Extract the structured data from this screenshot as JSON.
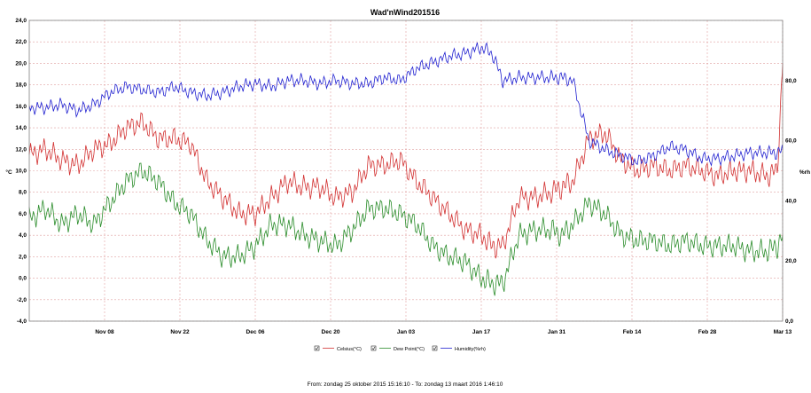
{
  "chart_data": {
    "type": "line",
    "title": "Wad'nWind201516",
    "ylabel_left": "°C",
    "ylabel_right": "%rh",
    "ylim_left": [
      -4,
      24
    ],
    "y_ticks_left": [
      "-4,0",
      "-2,0",
      "0,0",
      "2,0",
      "4,0",
      "6,0",
      "8,0",
      "10,0",
      "12,0",
      "14,0",
      "16,0",
      "18,0",
      "20,0",
      "22,0",
      "24,0"
    ],
    "ylim_right": [
      0,
      100
    ],
    "y_ticks_right": [
      "0,0",
      "20,0",
      "40,0",
      "60,0",
      "80,0"
    ],
    "x_tick_labels": [
      "Nov 08",
      "Nov 22",
      "Dec 06",
      "Dec 20",
      "Jan 03",
      "Jan 17",
      "Jan 31",
      "Feb 14",
      "Feb 28",
      "Mar 13"
    ],
    "x_range_days": [
      0,
      140
    ],
    "x_tick_days": [
      14,
      28,
      42,
      56,
      70,
      84,
      98,
      112,
      126,
      140
    ],
    "grid": true,
    "legend_position": "bottom-center",
    "series": [
      {
        "name": "Celsius(°C)",
        "axis": "left",
        "color": "#d23030",
        "x": [
          0,
          3,
          6,
          9,
          12,
          15,
          18,
          21,
          24,
          27,
          30,
          33,
          36,
          39,
          42,
          45,
          48,
          51,
          54,
          57,
          60,
          63,
          66,
          69,
          72,
          75,
          78,
          81,
          84,
          86,
          88,
          91,
          94,
          97,
          99,
          101,
          104,
          107,
          110,
          113,
          116,
          119,
          122,
          125,
          128,
          131,
          134,
          137,
          139,
          140
        ],
        "values": [
          11.5,
          12,
          11,
          10.5,
          12,
          12.5,
          14,
          14.5,
          13,
          13,
          12.5,
          9,
          7.5,
          6,
          6,
          7.5,
          9,
          8.5,
          8.5,
          7.5,
          8,
          10.5,
          10.5,
          11,
          9,
          7.5,
          6,
          4.5,
          4,
          3,
          3,
          7.5,
          7.5,
          8,
          8.5,
          9,
          13,
          13.5,
          11,
          10,
          10.5,
          10,
          10.5,
          10,
          9.5,
          10,
          10,
          9.5,
          10,
          20
        ]
      },
      {
        "name": "Dew Point(°C)",
        "axis": "left",
        "color": "#2a8c2a",
        "x": [
          0,
          3,
          6,
          9,
          12,
          15,
          18,
          21,
          24,
          27,
          30,
          33,
          36,
          39,
          42,
          45,
          48,
          51,
          54,
          57,
          60,
          63,
          66,
          69,
          72,
          75,
          78,
          81,
          84,
          86,
          88,
          91,
          94,
          97,
          99,
          101,
          104,
          107,
          110,
          113,
          116,
          119,
          122,
          125,
          128,
          131,
          134,
          137,
          139,
          140
        ],
        "values": [
          5.5,
          6.5,
          5,
          6,
          5,
          7,
          9,
          10,
          9,
          7,
          6,
          3.5,
          2,
          2,
          3,
          5,
          5,
          4,
          3.5,
          3,
          4.5,
          6.5,
          6.5,
          6,
          5,
          3,
          2,
          1.5,
          0,
          -0.5,
          -0.5,
          4,
          4.5,
          4.5,
          4,
          5,
          7,
          6,
          4,
          3.5,
          3.5,
          3,
          3.5,
          3,
          3,
          3,
          2.5,
          2.5,
          3,
          4
        ]
      },
      {
        "name": "Humidity(%rh)",
        "axis": "right",
        "color": "#2020d0",
        "x": [
          0,
          3,
          6,
          9,
          12,
          15,
          18,
          21,
          24,
          27,
          30,
          33,
          36,
          39,
          42,
          45,
          48,
          51,
          54,
          57,
          60,
          63,
          66,
          69,
          72,
          75,
          78,
          81,
          84,
          86,
          88,
          91,
          94,
          97,
          99,
          101,
          104,
          107,
          110,
          113,
          116,
          119,
          122,
          125,
          128,
          131,
          134,
          137,
          139,
          140
        ],
        "values": [
          71,
          71,
          72,
          70,
          72,
          76,
          78,
          77,
          76,
          78,
          76,
          75,
          76,
          78,
          79,
          78,
          80,
          80,
          79,
          80,
          79,
          79,
          81,
          80,
          84,
          86,
          88,
          89,
          91,
          89,
          80,
          81,
          81,
          81,
          81,
          80,
          60,
          57,
          55,
          53,
          55,
          58,
          57,
          54,
          54,
          55,
          56,
          56,
          56,
          57
        ]
      }
    ],
    "footer": "From: zondag 25 oktober 2015 15:16:10  -  To: zondag 13 maart 2016 1:46:10"
  }
}
